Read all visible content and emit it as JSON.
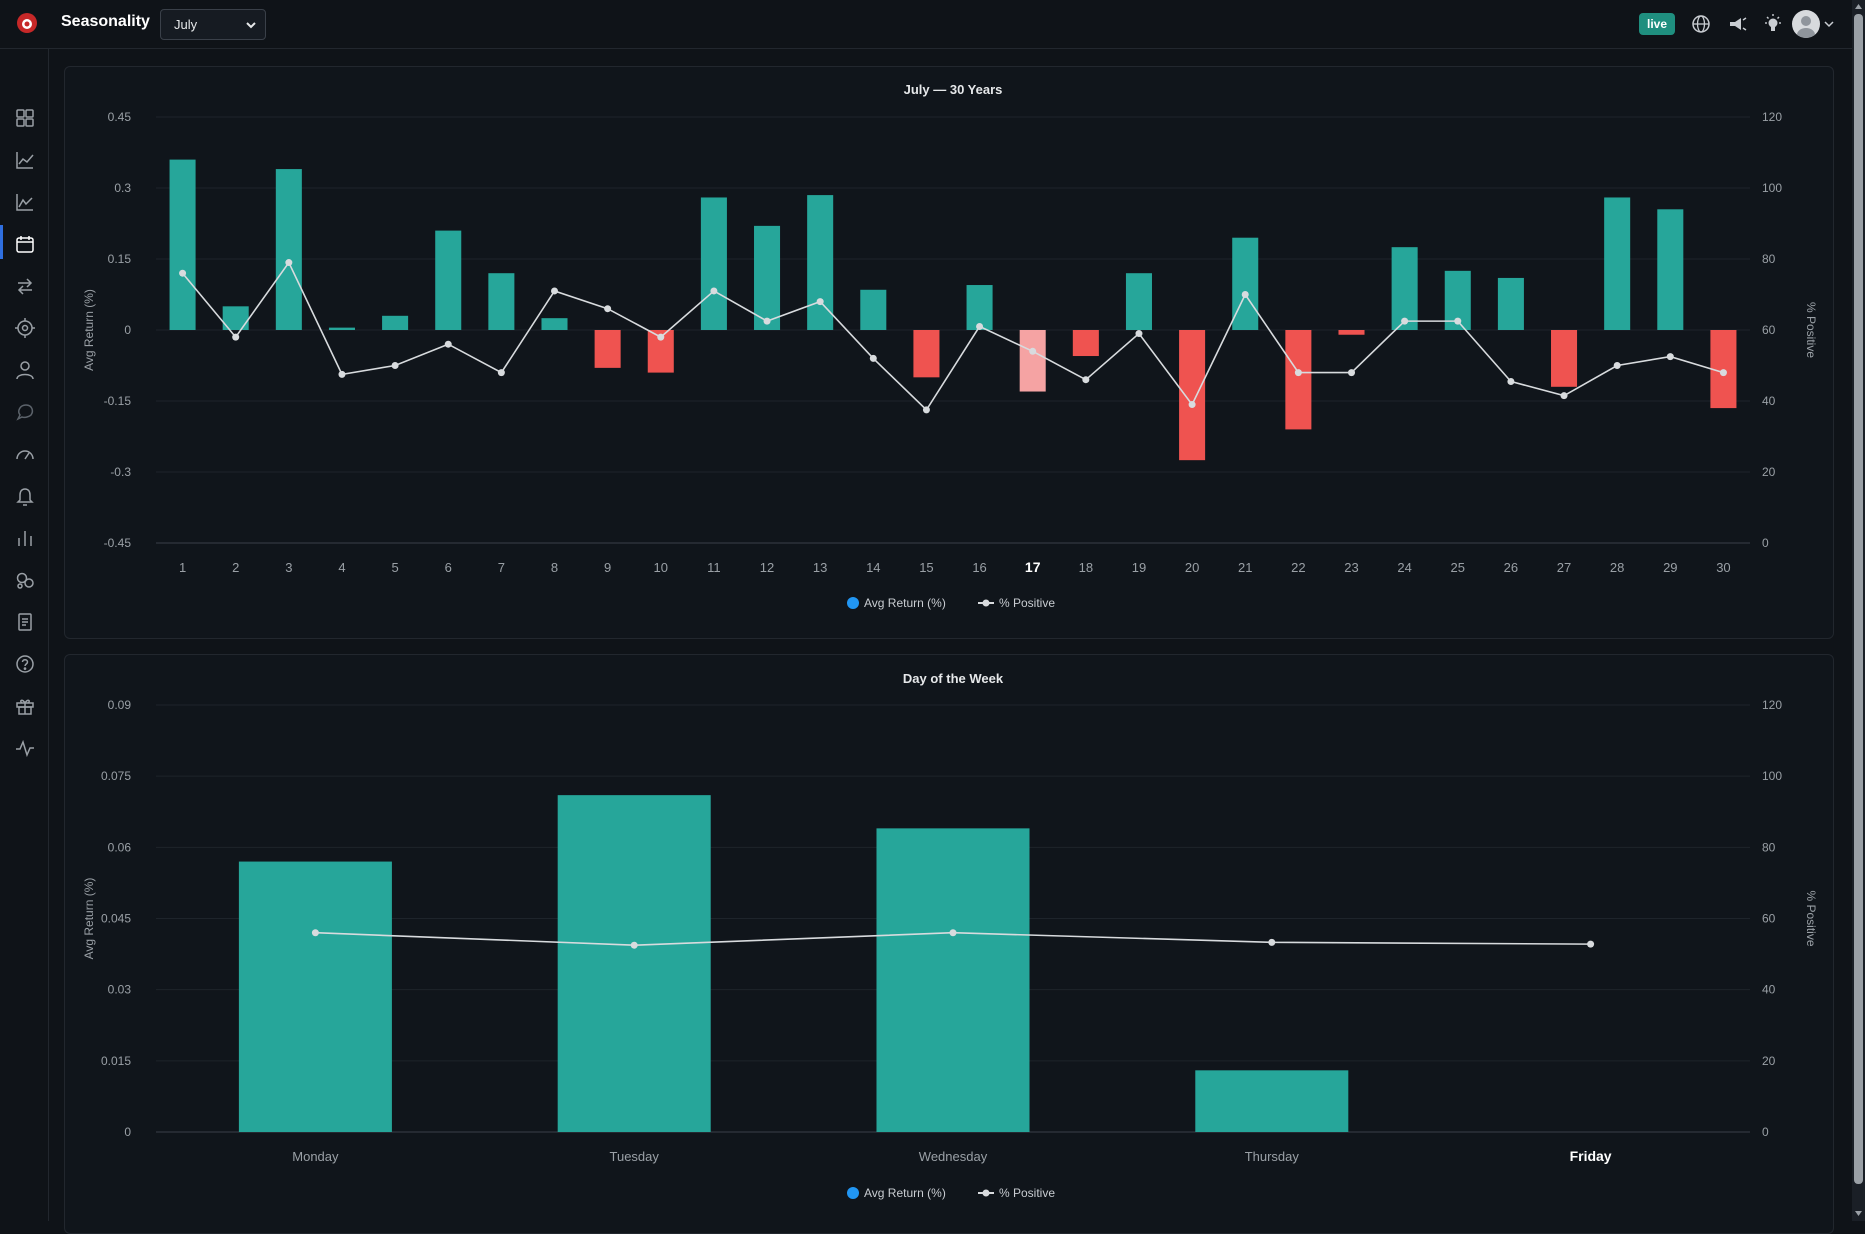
{
  "header": {
    "title": "Seasonality",
    "month_selected": "July",
    "live_badge": "live"
  },
  "icons": {
    "top": [
      "globe-icon",
      "megaphone-icon",
      "lightbulb-icon",
      "avatar",
      "chevron-down-icon"
    ],
    "sidebar": [
      "dashboard-icon",
      "line-chart-icon",
      "area-chart-icon",
      "calendar-icon",
      "swap-icon",
      "target-icon",
      "user-icon",
      "chat-icon",
      "speedometer-icon",
      "bell-icon",
      "bar-chart-icon",
      "bubbles-icon",
      "document-icon",
      "help-icon",
      "gift-icon",
      "pulse-icon"
    ]
  },
  "colors": {
    "positive": "#26a69a",
    "negative": "#ef5350",
    "highlight_negative": "#f5a3a3",
    "line": "#d8dbde",
    "legend_dot": "#2196f3",
    "accent": "#2f6fe0"
  },
  "chart_data": [
    {
      "type": "bar",
      "title": "July — 30 Years",
      "ylabel": "Avg Return (%)",
      "y2label": "% Positive",
      "ylim": [
        -0.45,
        0.45
      ],
      "yticks": [
        "0.45",
        "0.3",
        "0.15",
        "0",
        "-0.15",
        "-0.3",
        "-0.45"
      ],
      "y2lim": [
        0,
        120
      ],
      "y2ticks": [
        "120",
        "100",
        "80",
        "60",
        "40",
        "20",
        "0"
      ],
      "highlight_category": "17",
      "categories": [
        "1",
        "2",
        "3",
        "4",
        "5",
        "6",
        "7",
        "8",
        "9",
        "10",
        "11",
        "12",
        "13",
        "14",
        "15",
        "16",
        "17",
        "18",
        "19",
        "20",
        "21",
        "22",
        "23",
        "24",
        "25",
        "26",
        "27",
        "28",
        "29",
        "30"
      ],
      "series": [
        {
          "name": "Avg Return (%)",
          "kind": "bar",
          "values": [
            0.36,
            0.05,
            0.34,
            0.005,
            0.03,
            0.21,
            0.12,
            0.025,
            -0.08,
            -0.09,
            0.28,
            0.22,
            0.285,
            0.085,
            -0.1,
            0.095,
            -0.13,
            -0.055,
            0.12,
            -0.275,
            0.195,
            -0.21,
            -0.01,
            0.175,
            0.125,
            0.11,
            -0.12,
            0.28,
            0.255,
            -0.165
          ]
        },
        {
          "name": "% Positive",
          "kind": "line",
          "values": [
            76,
            58,
            79,
            47.5,
            50,
            56,
            48,
            71,
            66,
            58,
            71,
            62.5,
            68,
            52,
            37.5,
            61,
            54,
            46,
            59,
            39,
            70,
            48,
            48,
            62.5,
            62.5,
            45.5,
            41.5,
            50,
            52.5,
            48
          ]
        }
      ],
      "legend": [
        "Avg Return (%)",
        "% Positive"
      ],
      "legend_position": "bottom-center",
      "grid": true
    },
    {
      "type": "bar",
      "title": "Day of the Week",
      "ylabel": "Avg Return (%)",
      "y2label": "% Positive",
      "ylim": [
        0,
        0.09
      ],
      "yticks": [
        "0.09",
        "0.075",
        "0.06",
        "0.045",
        "0.03",
        "0.015",
        "0"
      ],
      "y2lim": [
        0,
        120
      ],
      "y2ticks": [
        "120",
        "100",
        "80",
        "60",
        "40",
        "20",
        "0"
      ],
      "highlight_category": "Friday",
      "categories": [
        "Monday",
        "Tuesday",
        "Wednesday",
        "Thursday",
        "Friday"
      ],
      "series": [
        {
          "name": "Avg Return (%)",
          "kind": "bar",
          "values": [
            0.057,
            0.071,
            0.064,
            0.013,
            0
          ]
        },
        {
          "name": "% Positive",
          "kind": "line",
          "values": [
            56,
            52.5,
            56,
            53.3,
            52.8
          ]
        }
      ],
      "legend": [
        "Avg Return (%)",
        "% Positive"
      ],
      "legend_position": "bottom-center",
      "grid": true
    }
  ]
}
